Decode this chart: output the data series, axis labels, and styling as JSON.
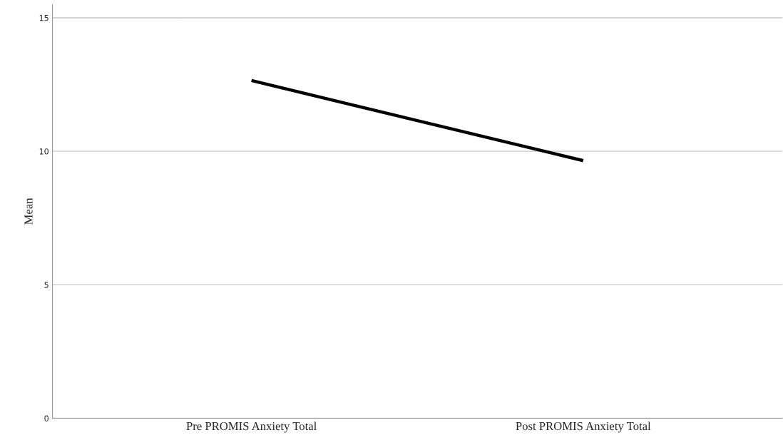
{
  "chart_data": {
    "type": "line",
    "ylabel": "Mean",
    "categories": [
      "Pre PROMIS Anxiety Total",
      "Post PROMIS Anxiety Total"
    ],
    "series": [
      {
        "color": "#000000",
        "values": [
          12.65,
          9.65
        ]
      }
    ],
    "ylim": [
      0,
      15.5
    ],
    "yticks": [
      0,
      5,
      10,
      15
    ],
    "grid": "y",
    "legend": false,
    "marker": "none",
    "line_style": "solid"
  }
}
